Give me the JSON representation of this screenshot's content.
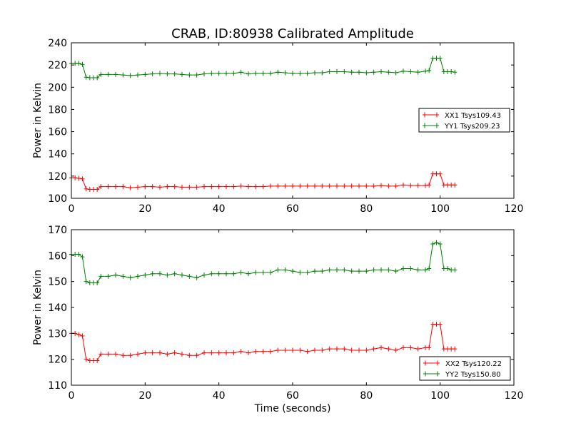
{
  "title": "CRAB, ID:80938 Calibrated Amplitude",
  "chart_data": [
    {
      "type": "line",
      "title": "CRAB, ID:80938 Calibrated Amplitude",
      "xlabel": "",
      "ylabel": "Power in Kelvin",
      "xlim": [
        0,
        120
      ],
      "ylim": [
        100,
        240
      ],
      "xticks": [
        0,
        20,
        40,
        60,
        80,
        100,
        120
      ],
      "yticks": [
        100,
        120,
        140,
        160,
        180,
        200,
        220,
        240
      ],
      "legend_position": "center-right",
      "grid": false,
      "series": [
        {
          "name": "XX1 Tsys109.43",
          "color": "#ff0000",
          "marker": "plus",
          "x": [
            0,
            1,
            2,
            3,
            4,
            5,
            6,
            7,
            8,
            10,
            12,
            14,
            16,
            18,
            20,
            22,
            24,
            26,
            28,
            30,
            32,
            34,
            36,
            38,
            40,
            42,
            44,
            46,
            48,
            50,
            52,
            54,
            56,
            58,
            60,
            62,
            64,
            66,
            68,
            70,
            72,
            74,
            76,
            78,
            80,
            82,
            84,
            86,
            88,
            90,
            92,
            94,
            96,
            97,
            98,
            99,
            100,
            101,
            102,
            103,
            104
          ],
          "y": [
            118.5,
            118.5,
            118,
            117.5,
            108.5,
            108,
            108,
            108,
            110.5,
            110.5,
            110.5,
            110.5,
            109.5,
            110,
            110.5,
            110.5,
            110,
            110.5,
            110.5,
            110,
            110,
            110,
            110.5,
            110.5,
            110.5,
            110.5,
            110.5,
            111,
            110.5,
            110.5,
            110.5,
            111,
            111,
            111,
            111,
            111,
            111,
            111,
            111,
            111,
            111,
            111,
            111,
            111,
            111,
            111,
            111.5,
            111,
            111,
            112,
            111.5,
            111.5,
            111.5,
            112,
            122,
            122,
            122,
            112,
            112,
            112,
            112
          ]
        },
        {
          "name": "YY1 Tsys209.23",
          "color": "#008000",
          "marker": "plus",
          "x": [
            0,
            1,
            2,
            3,
            4,
            5,
            6,
            7,
            8,
            10,
            12,
            14,
            16,
            18,
            20,
            22,
            24,
            26,
            28,
            30,
            32,
            34,
            36,
            38,
            40,
            42,
            44,
            46,
            48,
            50,
            52,
            54,
            56,
            58,
            60,
            62,
            64,
            66,
            68,
            70,
            72,
            74,
            76,
            78,
            80,
            82,
            84,
            86,
            88,
            90,
            92,
            94,
            96,
            97,
            98,
            99,
            100,
            101,
            102,
            103,
            104
          ],
          "y": [
            221.5,
            221.5,
            221.5,
            220.5,
            209,
            208.5,
            208.5,
            208.5,
            211.5,
            211.5,
            211.5,
            211,
            210.5,
            211,
            211.5,
            212,
            212.5,
            212,
            212,
            211.5,
            211,
            211,
            212,
            212.5,
            212.5,
            212.5,
            212.5,
            213.5,
            212,
            212.5,
            212.5,
            212.5,
            213.5,
            213,
            212.5,
            212.5,
            212.5,
            213,
            213,
            214,
            214,
            214,
            213.5,
            213.5,
            213,
            213.5,
            214,
            213.5,
            213,
            214.5,
            214,
            213.5,
            214.5,
            215,
            226,
            226,
            226,
            214,
            214,
            214,
            213.5
          ]
        }
      ]
    },
    {
      "type": "line",
      "title": "",
      "xlabel": "Time (seconds)",
      "ylabel": "Power in Kelvin",
      "xlim": [
        0,
        120
      ],
      "ylim": [
        110,
        170
      ],
      "xticks": [
        0,
        20,
        40,
        60,
        80,
        100,
        120
      ],
      "yticks": [
        110,
        120,
        130,
        140,
        150,
        160,
        170
      ],
      "legend_position": "lower-right",
      "grid": false,
      "series": [
        {
          "name": "XX2 Tsys120.22",
          "color": "#ff0000",
          "marker": "plus",
          "x": [
            0,
            1,
            2,
            3,
            4,
            5,
            6,
            7,
            8,
            10,
            12,
            14,
            16,
            18,
            20,
            22,
            24,
            26,
            28,
            30,
            32,
            34,
            36,
            38,
            40,
            42,
            44,
            46,
            48,
            50,
            52,
            54,
            56,
            58,
            60,
            62,
            64,
            66,
            68,
            70,
            72,
            74,
            76,
            78,
            80,
            82,
            84,
            86,
            88,
            90,
            92,
            94,
            96,
            97,
            98,
            99,
            100,
            101,
            102,
            103,
            104
          ],
          "y": [
            130,
            130,
            129.5,
            129,
            120,
            119.5,
            119.5,
            119.5,
            122,
            122,
            122,
            121.5,
            121.5,
            122,
            122.5,
            122.5,
            122.5,
            122,
            122.5,
            122,
            121.5,
            121.5,
            122.5,
            122.5,
            122.5,
            122.5,
            122.5,
            123,
            122.5,
            123,
            123,
            123,
            123.5,
            123.5,
            123.5,
            123.5,
            123,
            123.5,
            123.5,
            124,
            124,
            124,
            123.5,
            123.5,
            123.5,
            124,
            124.5,
            124,
            123.5,
            124.5,
            124.5,
            124,
            124.5,
            124.5,
            133.5,
            133.5,
            133.5,
            124,
            124,
            124,
            124
          ]
        },
        {
          "name": "YY2 Tsys150.80",
          "color": "#008000",
          "marker": "plus",
          "x": [
            0,
            1,
            2,
            3,
            4,
            5,
            6,
            7,
            8,
            10,
            12,
            14,
            16,
            18,
            20,
            22,
            24,
            26,
            28,
            30,
            32,
            34,
            36,
            38,
            40,
            42,
            44,
            46,
            48,
            50,
            52,
            54,
            56,
            58,
            60,
            62,
            64,
            66,
            68,
            70,
            72,
            74,
            76,
            78,
            80,
            82,
            84,
            86,
            88,
            90,
            92,
            94,
            96,
            97,
            98,
            99,
            100,
            101,
            102,
            103,
            104
          ],
          "y": [
            160.5,
            160.5,
            160.5,
            159.5,
            150,
            149.5,
            149.5,
            149.5,
            152,
            152,
            152.5,
            152,
            151.5,
            152,
            152.5,
            153,
            153,
            152.5,
            153,
            152.5,
            152,
            151.5,
            152.5,
            153,
            153,
            153,
            153,
            153.5,
            153,
            153.5,
            153.5,
            153.5,
            154.5,
            154.5,
            154,
            153.5,
            153.5,
            154,
            154,
            154.5,
            154.5,
            154.5,
            154,
            154,
            154,
            154.5,
            154.5,
            154.5,
            154,
            155,
            155,
            154.5,
            154.5,
            155,
            164.5,
            165,
            164.5,
            155,
            155,
            154.5,
            154.5
          ]
        }
      ]
    }
  ]
}
